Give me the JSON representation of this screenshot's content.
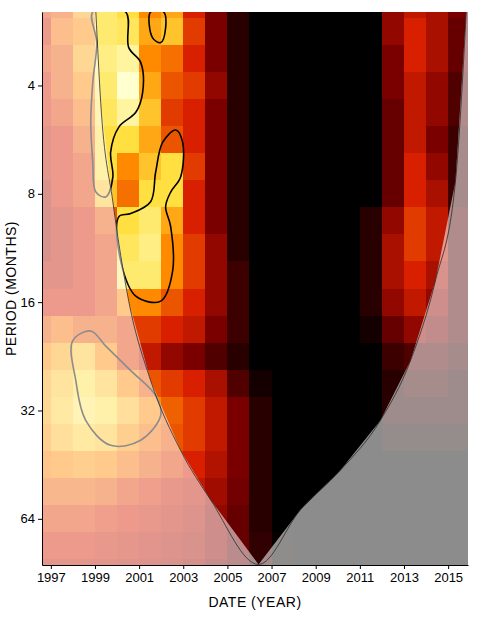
{
  "chart_data": {
    "type": "heatmap",
    "x_label": "DATE (YEAR)",
    "y_label": "PERIOD (MONTHS)",
    "log": "y",
    "grid": false,
    "xlim": [
      1996.6,
      2015.9
    ],
    "xticks": [
      1997,
      1999,
      2001,
      2003,
      2005,
      2007,
      2009,
      2011,
      2013,
      2015
    ],
    "ylim": [
      2.5,
      86
    ],
    "yticks": [
      4,
      8,
      16,
      32,
      64
    ],
    "zlim": [
      0,
      1
    ],
    "x": [
      1996.5,
      1997.5,
      1998.5,
      1999.5,
      2000.5,
      2001.5,
      2002.5,
      2003.5,
      2004.5,
      2005.5,
      2006.5,
      2007.5,
      2008.5,
      2009.5,
      2010.5,
      2011.5,
      2012.5,
      2013.5,
      2014.5,
      2015.5
    ],
    "y": [
      2.38,
      2.83,
      3.36,
      4,
      4.76,
      5.66,
      6.73,
      8,
      9.51,
      11.31,
      13.45,
      16,
      19.03,
      22.63,
      26.91,
      32,
      38.05,
      45.25,
      53.82,
      64,
      76.11,
      90.51
    ],
    "cells": [
      [
        0.55,
        0.6,
        0.75,
        0.9,
        0.85,
        0.7,
        0.75,
        0.5,
        0.3,
        0.1,
        0,
        0,
        0,
        0,
        0,
        0,
        0.35,
        0.45,
        0.4,
        0.3
      ],
      [
        0.5,
        0.65,
        0.7,
        0.9,
        0.88,
        0.75,
        0.8,
        0.55,
        0.3,
        0.1,
        0,
        0,
        0,
        0,
        0,
        0,
        0.35,
        0.5,
        0.4,
        0.25
      ],
      [
        0.55,
        0.6,
        0.75,
        0.92,
        0.95,
        0.7,
        0.65,
        0.5,
        0.3,
        0.1,
        0,
        0,
        0,
        0,
        0,
        0,
        0.3,
        0.5,
        0.4,
        0.25
      ],
      [
        0.5,
        0.6,
        0.7,
        0.9,
        1.0,
        0.75,
        0.6,
        0.55,
        0.35,
        0.1,
        0,
        0,
        0,
        0,
        0,
        0,
        0.3,
        0.45,
        0.35,
        0.2
      ],
      [
        0.5,
        0.55,
        0.65,
        0.88,
        0.95,
        0.8,
        0.55,
        0.5,
        0.3,
        0.1,
        0,
        0,
        0,
        0,
        0,
        0,
        0.25,
        0.45,
        0.35,
        0.2
      ],
      [
        0.45,
        0.5,
        0.6,
        0.85,
        0.85,
        0.75,
        0.6,
        0.5,
        0.3,
        0.1,
        0,
        0,
        0,
        0,
        0,
        0,
        0.25,
        0.45,
        0.3,
        0.15
      ],
      [
        0.45,
        0.5,
        0.55,
        0.85,
        0.7,
        0.8,
        0.85,
        0.55,
        0.3,
        0.1,
        0,
        0,
        0,
        0,
        0,
        0,
        0.25,
        0.5,
        0.35,
        0.15
      ],
      [
        0.4,
        0.5,
        0.55,
        0.8,
        0.65,
        0.85,
        0.85,
        0.5,
        0.3,
        0.1,
        0,
        0,
        0,
        0,
        0,
        0,
        0.25,
        0.5,
        0.4,
        0.15
      ],
      [
        0.4,
        0.45,
        0.5,
        0.6,
        0.85,
        0.9,
        0.75,
        0.5,
        0.3,
        0.1,
        0,
        0,
        0,
        0,
        0,
        0.1,
        0.35,
        0.55,
        0.45,
        0.2
      ],
      [
        0.4,
        0.45,
        0.5,
        0.55,
        0.88,
        0.92,
        0.7,
        0.55,
        0.35,
        0.1,
        0,
        0,
        0,
        0,
        0,
        0.1,
        0.4,
        0.55,
        0.45,
        0.2
      ],
      [
        0.45,
        0.45,
        0.5,
        0.55,
        0.9,
        0.9,
        0.7,
        0.55,
        0.35,
        0.15,
        0,
        0,
        0,
        0,
        0,
        0.1,
        0.4,
        0.5,
        0.4,
        0.2
      ],
      [
        0.5,
        0.5,
        0.5,
        0.55,
        0.7,
        0.7,
        0.6,
        0.5,
        0.35,
        0.15,
        0,
        0,
        0,
        0,
        0,
        0.1,
        0.35,
        0.45,
        0.35,
        0.2
      ],
      [
        0.6,
        0.65,
        0.6,
        0.6,
        0.55,
        0.55,
        0.5,
        0.45,
        0.3,
        0.15,
        0,
        0,
        0,
        0,
        0,
        0.05,
        0.25,
        0.35,
        0.3,
        0.2
      ],
      [
        0.7,
        0.75,
        0.8,
        0.7,
        0.55,
        0.45,
        0.35,
        0.3,
        0.2,
        0.1,
        0,
        0,
        0,
        0,
        0,
        0,
        0.15,
        0.2,
        0.2,
        0.15
      ],
      [
        0.75,
        0.8,
        0.85,
        0.8,
        0.7,
        0.6,
        0.55,
        0.5,
        0.4,
        0.2,
        0.05,
        0,
        0,
        0,
        0,
        0,
        0.1,
        0.15,
        0.15,
        0.1
      ],
      [
        0.75,
        0.82,
        0.88,
        0.85,
        0.78,
        0.7,
        0.62,
        0.55,
        0.45,
        0.3,
        0.1,
        0,
        0,
        0,
        0,
        0,
        0.1,
        0.1,
        0.1,
        0.1
      ],
      [
        0.72,
        0.78,
        0.82,
        0.8,
        0.72,
        0.65,
        0.6,
        0.55,
        0.45,
        0.3,
        0.1,
        0,
        0,
        0,
        0,
        0,
        0.05,
        0.05,
        0.05,
        0.05
      ],
      [
        0.68,
        0.7,
        0.72,
        0.7,
        0.65,
        0.6,
        0.55,
        0.5,
        0.42,
        0.3,
        0.1,
        0,
        0,
        0,
        0,
        0,
        0,
        0,
        0,
        0
      ],
      [
        0.62,
        0.62,
        0.62,
        0.6,
        0.55,
        0.52,
        0.48,
        0.45,
        0.38,
        0.28,
        0.1,
        0,
        0,
        0,
        0,
        0,
        0,
        0,
        0,
        0
      ],
      [
        0.55,
        0.55,
        0.55,
        0.52,
        0.5,
        0.48,
        0.45,
        0.42,
        0.35,
        0.25,
        0.1,
        0,
        0,
        0,
        0,
        0,
        0,
        0,
        0,
        0
      ],
      [
        0.5,
        0.5,
        0.5,
        0.48,
        0.46,
        0.44,
        0.42,
        0.4,
        0.35,
        0.25,
        0.12,
        0.02,
        0,
        0,
        0,
        0,
        0,
        0,
        0,
        0
      ],
      [
        0.45,
        0.45,
        0.45,
        0.44,
        0.43,
        0.42,
        0.4,
        0.38,
        0.32,
        0.25,
        0.12,
        0.02,
        0,
        0,
        0,
        0,
        0,
        0,
        0,
        0
      ]
    ],
    "contours": [
      {
        "x": [
          1998.9,
          1999.08,
          1998.9,
          1998.81,
          1998.9,
          1999.04,
          1999.49,
          1999.81,
          1999.71,
          2000.08,
          2000.85,
          2001.16,
          2001.07,
          2000.53,
          2000.39
        ],
        "period": [
          2.5,
          3.04,
          3.92,
          5.06,
          6.53,
          7.91,
          8.16,
          7.18,
          6.13,
          5.22,
          4.75,
          4.18,
          3.45,
          3.14,
          2.5
        ]
      },
      {
        "x": [
          2001.52,
          2001.61,
          2001.98,
          2002.2,
          2002.11
        ],
        "period": [
          2.5,
          2.95,
          3.04,
          2.77,
          2.5
        ]
      },
      {
        "x": [
          2000.08,
          2000.17,
          2000.85,
          2001.98,
          2002.52,
          2002.43,
          2002.2,
          2002.43,
          2002.88,
          2002.97,
          2002.66,
          2002.07,
          2001.75,
          2001.52,
          2000.62
        ],
        "period": [
          9.26,
          12.33,
          15.4,
          15.9,
          13.1,
          9.87,
          8.69,
          7.91,
          7.18,
          5.75,
          5.32,
          5.75,
          6.96,
          8.42,
          9.08
        ]
      },
      {
        "x": [
          1997.99,
          1998.13,
          1998.58,
          1999.71,
          2001.07,
          2001.98,
          2001.75,
          2000.62,
          1999.49,
          1998.81
        ],
        "period": [
          20.5,
          26.4,
          34.1,
          40.0,
          38.7,
          33.0,
          29.1,
          24.8,
          21.2,
          19.24
        ]
      }
    ],
    "coi": {
      "x": [
        1999.04,
        1999.26,
        1999.81,
        2000.53,
        2001.52,
        2002.88,
        2004.24,
        2006.41,
        2008.31,
        2010.12,
        2011.93,
        2013.29,
        2014.42,
        2015.33,
        2015.82
      ],
      "period": [
        2.5,
        4.46,
        8.42,
        15.9,
        26.4,
        41.3,
        56.7,
        85.7,
        60.4,
        46.9,
        34.1,
        23.3,
        13.99,
        7.41,
        2.5
      ]
    }
  }
}
